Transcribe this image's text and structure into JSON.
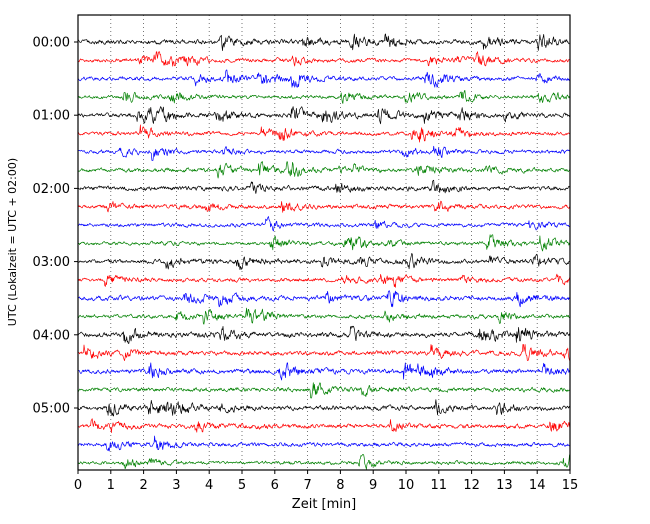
{
  "figure": {
    "background": "#ffffff",
    "border_color": "#000000"
  },
  "chart_data": {
    "type": "line",
    "subtype": "seismogram-helicorder",
    "title": "",
    "xlabel": "Zeit  [min]",
    "ylabel": "UTC (Lokalzeit = UTC + 02:00)",
    "xlim": [
      0,
      15
    ],
    "x_ticks": [
      "0",
      "1",
      "2",
      "3",
      "4",
      "5",
      "6",
      "7",
      "8",
      "9",
      "10",
      "11",
      "12",
      "13",
      "14",
      "15"
    ],
    "y_tick_labels": [
      "00:00",
      "01:00",
      "02:00",
      "03:00",
      "04:00",
      "05:00"
    ],
    "grid": "vertical dotted lines at every minute",
    "legend": "none",
    "trace_colors_cycle": [
      "#000000",
      "#ff0000",
      "#0000ff",
      "#008000"
    ],
    "minutes_per_line": 15,
    "traces": [
      {
        "start": "00:00",
        "color": "#000000",
        "labeled": true,
        "amp": 1.2,
        "seed": 13
      },
      {
        "start": "00:15",
        "color": "#ff0000",
        "labeled": false,
        "amp": 1.0,
        "seed": 7932
      },
      {
        "start": "00:30",
        "color": "#0000ff",
        "labeled": false,
        "amp": 1.0,
        "seed": 15851
      },
      {
        "start": "00:45",
        "color": "#008000",
        "labeled": false,
        "amp": 0.9,
        "seed": 23770
      },
      {
        "start": "01:00",
        "color": "#000000",
        "labeled": true,
        "amp": 1.1,
        "seed": 31689
      },
      {
        "start": "01:15",
        "color": "#ff0000",
        "labeled": false,
        "amp": 1.0,
        "seed": 39608
      },
      {
        "start": "01:30",
        "color": "#0000ff",
        "labeled": false,
        "amp": 0.95,
        "seed": 47527
      },
      {
        "start": "01:45",
        "color": "#008000",
        "labeled": false,
        "amp": 1.0,
        "seed": 55446
      },
      {
        "start": "02:00",
        "color": "#000000",
        "labeled": true,
        "amp": 1.15,
        "seed": 63365
      },
      {
        "start": "02:15",
        "color": "#ff0000",
        "labeled": false,
        "amp": 1.05,
        "seed": 71284
      },
      {
        "start": "02:30",
        "color": "#0000ff",
        "labeled": false,
        "amp": 1.0,
        "seed": 79203
      },
      {
        "start": "02:45",
        "color": "#008000",
        "labeled": false,
        "amp": 0.95,
        "seed": 87122
      },
      {
        "start": "03:00",
        "color": "#000000",
        "labeled": true,
        "amp": 1.1,
        "seed": 95041
      },
      {
        "start": "03:15",
        "color": "#ff0000",
        "labeled": false,
        "amp": 1.0,
        "seed": 102960
      },
      {
        "start": "03:30",
        "color": "#0000ff",
        "labeled": false,
        "amp": 1.25,
        "seed": 110879
      },
      {
        "start": "03:45",
        "color": "#008000",
        "labeled": false,
        "amp": 1.0,
        "seed": 118798
      },
      {
        "start": "04:00",
        "color": "#000000",
        "labeled": true,
        "amp": 1.3,
        "seed": 126717
      },
      {
        "start": "04:15",
        "color": "#ff0000",
        "labeled": false,
        "amp": 1.1,
        "seed": 134636
      },
      {
        "start": "04:30",
        "color": "#0000ff",
        "labeled": false,
        "amp": 1.15,
        "seed": 142555
      },
      {
        "start": "04:45",
        "color": "#008000",
        "labeled": false,
        "amp": 1.05,
        "seed": 150474
      },
      {
        "start": "05:00",
        "color": "#000000",
        "labeled": true,
        "amp": 1.2,
        "seed": 158393
      },
      {
        "start": "05:15",
        "color": "#ff0000",
        "labeled": false,
        "amp": 1.1,
        "seed": 166312
      },
      {
        "start": "05:30",
        "color": "#0000ff",
        "labeled": false,
        "amp": 1.05,
        "seed": 174231
      },
      {
        "start": "05:45",
        "color": "#008000",
        "labeled": false,
        "amp": 0.9,
        "seed": 182150
      }
    ]
  }
}
